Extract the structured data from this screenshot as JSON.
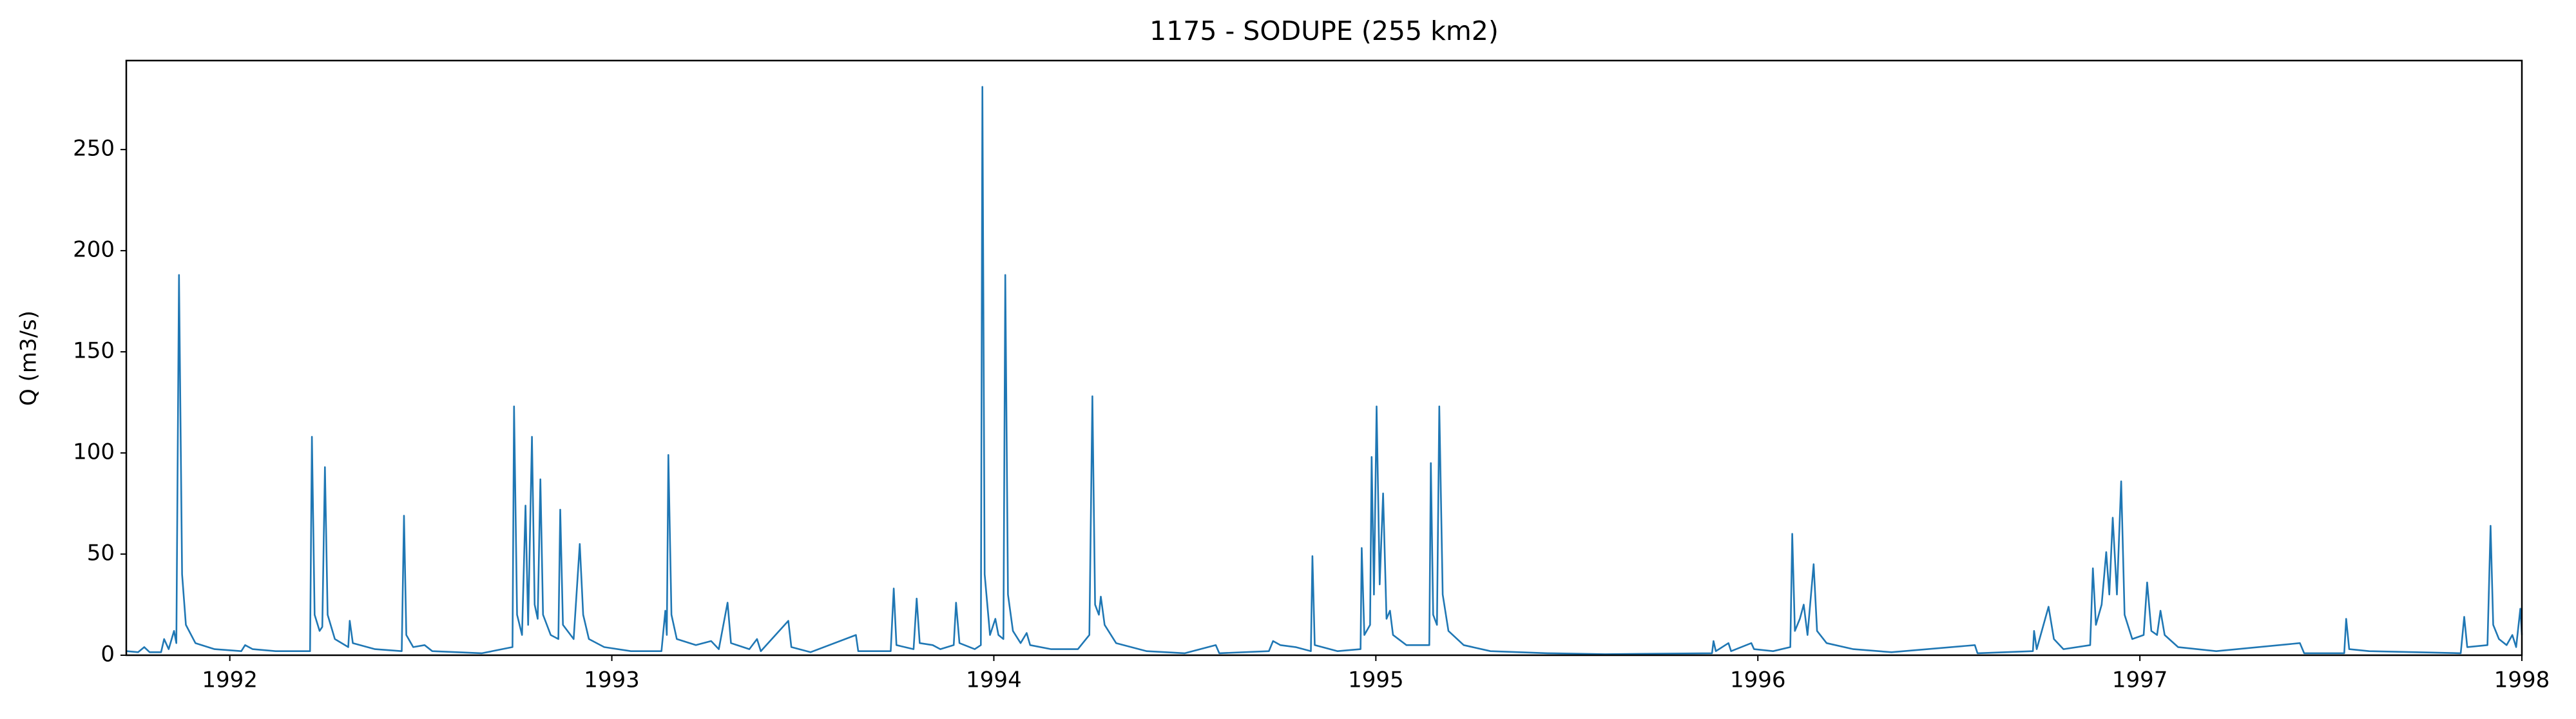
{
  "chart_data": {
    "type": "line",
    "title": "1175 - SODUPE (255 km2)",
    "y_label": "Q (m3/s)",
    "xlim": [
      1991.729,
      1998.0
    ],
    "xticks": [
      1992,
      1993,
      1994,
      1995,
      1996,
      1997,
      1998
    ],
    "ylim": [
      0,
      294
    ],
    "yticks": [
      0,
      50,
      100,
      150,
      200,
      250
    ],
    "grid": false,
    "x": [
      1991.73,
      1991.76,
      1991.776,
      1991.79,
      1991.82,
      1991.828,
      1991.84,
      1991.854,
      1991.86,
      1991.867,
      1991.875,
      1991.885,
      1991.91,
      1991.96,
      1992.03,
      1992.04,
      1992.06,
      1992.12,
      1992.21,
      1992.215,
      1992.222,
      1992.235,
      1992.242,
      1992.249,
      1992.256,
      1992.275,
      1992.31,
      1992.314,
      1992.322,
      1992.38,
      1992.45,
      1992.456,
      1992.462,
      1992.48,
      1992.51,
      1992.53,
      1992.66,
      1992.74,
      1992.744,
      1992.752,
      1992.765,
      1992.774,
      1992.781,
      1992.791,
      1992.798,
      1992.806,
      1992.813,
      1992.82,
      1992.84,
      1992.86,
      1992.865,
      1992.872,
      1992.9,
      1992.916,
      1992.925,
      1992.94,
      1992.98,
      1993.05,
      1993.13,
      1993.14,
      1993.144,
      1993.148,
      1993.156,
      1993.17,
      1993.22,
      1993.26,
      1993.28,
      1993.303,
      1993.312,
      1993.36,
      1993.38,
      1993.39,
      1993.462,
      1993.47,
      1993.52,
      1993.639,
      1993.645,
      1993.73,
      1993.738,
      1993.745,
      1993.79,
      1993.798,
      1993.806,
      1993.84,
      1993.86,
      1993.895,
      1993.901,
      1993.91,
      1993.95,
      1993.966,
      1993.97,
      1993.976,
      1993.99,
      1994.004,
      1994.012,
      1994.025,
      1994.03,
      1994.037,
      1994.05,
      1994.07,
      1994.086,
      1994.095,
      1994.15,
      1994.22,
      1994.25,
      1994.258,
      1994.265,
      1994.275,
      1994.28,
      1994.29,
      1994.32,
      1994.4,
      1994.5,
      1994.581,
      1994.59,
      1994.72,
      1994.731,
      1994.75,
      1994.79,
      1994.83,
      1994.834,
      1994.84,
      1994.9,
      1994.96,
      1994.963,
      1994.97,
      1994.985,
      1994.989,
      1994.995,
      1995.002,
      1995.01,
      1995.019,
      1995.028,
      1995.037,
      1995.045,
      1995.08,
      1995.14,
      1995.144,
      1995.15,
      1995.16,
      1995.166,
      1995.175,
      1995.19,
      1995.23,
      1995.3,
      1995.45,
      1995.6,
      1995.88,
      1995.884,
      1995.89,
      1995.923,
      1995.93,
      1995.983,
      1995.99,
      1996.04,
      1996.085,
      1996.09,
      1996.097,
      1996.11,
      1996.12,
      1996.13,
      1996.146,
      1996.155,
      1996.18,
      1996.25,
      1996.35,
      1996.568,
      1996.575,
      1996.72,
      1996.723,
      1996.73,
      1996.761,
      1996.775,
      1996.8,
      1996.87,
      1996.877,
      1996.885,
      1996.9,
      1996.912,
      1996.92,
      1996.929,
      1996.94,
      1996.951,
      1996.96,
      1996.98,
      1997.01,
      1997.019,
      1997.03,
      1997.045,
      1997.054,
      1997.065,
      1997.1,
      1997.2,
      1997.419,
      1997.43,
      1997.535,
      1997.54,
      1997.548,
      1997.6,
      1997.84,
      1997.849,
      1997.857,
      1997.91,
      1997.918,
      1997.925,
      1997.94,
      1997.96,
      1997.975,
      1997.985,
      1997.996,
      1998.0
    ],
    "series": [
      {
        "color": "#1f77b4",
        "values": [
          2,
          1.5,
          4,
          1.5,
          1.5,
          8,
          3,
          12,
          6,
          188,
          40,
          15,
          6,
          3,
          2,
          5,
          3,
          2,
          2,
          108,
          20,
          12,
          14,
          93,
          20,
          8,
          4,
          17,
          6,
          3,
          2,
          69,
          10,
          4,
          5,
          2,
          1,
          4,
          123,
          20,
          10,
          74,
          15,
          108,
          25,
          18,
          87,
          20,
          10,
          8,
          72,
          15,
          8,
          55,
          20,
          8,
          4,
          2,
          2,
          22,
          10,
          99,
          20,
          8,
          5,
          7,
          3,
          26,
          6,
          3,
          8,
          2,
          17,
          4,
          1.5,
          10,
          2,
          2,
          33,
          5,
          3,
          28,
          6,
          5,
          3,
          5,
          26,
          6,
          3,
          5,
          281,
          40,
          10,
          18,
          10,
          8,
          188,
          30,
          12,
          6,
          11,
          5,
          3,
          3,
          10,
          128,
          25,
          20,
          29,
          15,
          6,
          2,
          1,
          5,
          1,
          2,
          7,
          5,
          4,
          2,
          49,
          5,
          2,
          3,
          53,
          10,
          15,
          98,
          30,
          123,
          35,
          80,
          18,
          22,
          10,
          5,
          5,
          95,
          20,
          15,
          123,
          30,
          12,
          5,
          2,
          1,
          0.5,
          1,
          7,
          2,
          6,
          2,
          6,
          3,
          2,
          4,
          60,
          12,
          18,
          25,
          10,
          45,
          12,
          6,
          3,
          1.5,
          5,
          1,
          2,
          12,
          3,
          24,
          8,
          3,
          5,
          43,
          15,
          25,
          51,
          30,
          68,
          30,
          86,
          20,
          8,
          10,
          36,
          12,
          10,
          22,
          10,
          4,
          2,
          6,
          1,
          1,
          18,
          3,
          2,
          1,
          19,
          4,
          5,
          64,
          15,
          8,
          5,
          10,
          4,
          23,
          10
        ]
      }
    ]
  }
}
